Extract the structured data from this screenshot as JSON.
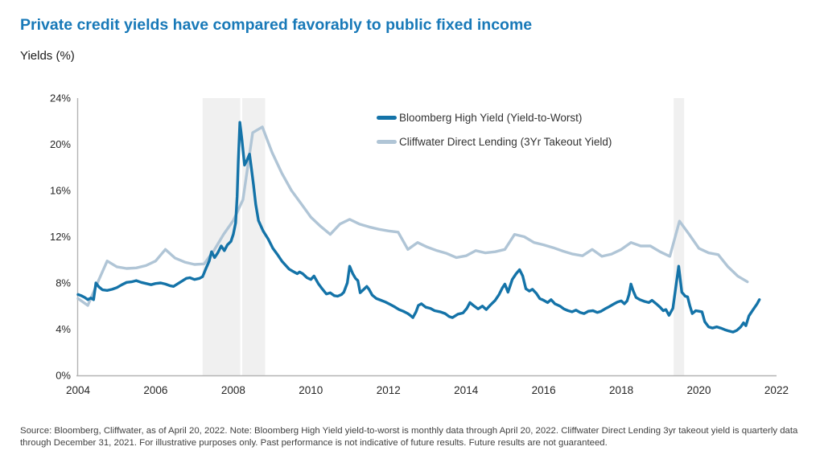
{
  "title": "Private credit yields have compared favorably to public fixed income",
  "subtitle": "Yields (%)",
  "legend": [
    {
      "label": "Bloomberg High Yield (Yield-to-Worst)",
      "color": "#1473A8"
    },
    {
      "label": "Cliffwater Direct Lending (3Yr Takeout Yield)",
      "color": "#B0C5D6"
    }
  ],
  "footnote": "Source: Bloomberg, Cliffwater, as of April 20, 2022. Note: Bloomberg High Yield yield-to-worst is monthly data through April 20, 2022. Cliffwater Direct Lending 3yr takeout yield is quarterly data through December 31, 2021. For illustrative purposes only. Past performance is not indicative of future results. Future results are not guaranteed.",
  "colors": {
    "title": "#1879B8",
    "axis_line": "#B3B3B3",
    "tick_text": "#262626",
    "recession_band": "#F0F0F0",
    "background": "#FFFFFF"
  },
  "chart_data": {
    "type": "line",
    "title": "Private credit yields have compared favorably to public fixed income",
    "ylabel": "Yields (%)",
    "xlabel": "",
    "grid": false,
    "legend_position": "inside-top-center",
    "ylim": [
      0,
      24
    ],
    "xlim": [
      2004,
      2022.4
    ],
    "y_tick_values": [
      0,
      4,
      8,
      12,
      16,
      20,
      24
    ],
    "y_tick_labels": [
      "0%",
      "4%",
      "8%",
      "12%",
      "16%",
      "20%",
      "24%"
    ],
    "x_tick_values": [
      2004,
      2006,
      2008,
      2010,
      2012,
      2014,
      2016,
      2018,
      2020,
      2022
    ],
    "recession_bands": [
      [
        2007.21,
        2008.18
      ],
      [
        2008.23,
        2008.82
      ],
      [
        2019.35,
        2019.62
      ]
    ],
    "series": [
      {
        "name": "Cliffwater Direct Lending (3Yr Takeout Yield)",
        "color": "#B0C5D6",
        "stroke_width": 3.4,
        "frequency": "quarterly",
        "points": [
          [
            2004.0,
            6.65
          ],
          [
            2004.25,
            6.05
          ],
          [
            2004.5,
            8.0
          ],
          [
            2004.75,
            9.9
          ],
          [
            2005.0,
            9.4
          ],
          [
            2005.25,
            9.25
          ],
          [
            2005.5,
            9.3
          ],
          [
            2005.75,
            9.5
          ],
          [
            2006.0,
            9.9
          ],
          [
            2006.25,
            10.9
          ],
          [
            2006.5,
            10.15
          ],
          [
            2006.75,
            9.8
          ],
          [
            2007.0,
            9.6
          ],
          [
            2007.25,
            9.65
          ],
          [
            2007.5,
            10.8
          ],
          [
            2007.75,
            12.2
          ],
          [
            2008.0,
            13.4
          ],
          [
            2008.25,
            15.2
          ],
          [
            2008.5,
            21.0
          ],
          [
            2008.75,
            21.5
          ],
          [
            2009.0,
            19.3
          ],
          [
            2009.25,
            17.5
          ],
          [
            2009.5,
            16.0
          ],
          [
            2009.75,
            14.85
          ],
          [
            2010.0,
            13.7
          ],
          [
            2010.25,
            12.9
          ],
          [
            2010.5,
            12.2
          ],
          [
            2010.75,
            13.1
          ],
          [
            2011.0,
            13.5
          ],
          [
            2011.25,
            13.1
          ],
          [
            2011.5,
            12.85
          ],
          [
            2011.75,
            12.65
          ],
          [
            2012.0,
            12.5
          ],
          [
            2012.25,
            12.4
          ],
          [
            2012.5,
            10.9
          ],
          [
            2012.75,
            11.5
          ],
          [
            2013.0,
            11.1
          ],
          [
            2013.25,
            10.8
          ],
          [
            2013.5,
            10.55
          ],
          [
            2013.75,
            10.2
          ],
          [
            2014.0,
            10.35
          ],
          [
            2014.25,
            10.8
          ],
          [
            2014.5,
            10.6
          ],
          [
            2014.75,
            10.7
          ],
          [
            2015.0,
            10.9
          ],
          [
            2015.25,
            12.2
          ],
          [
            2015.5,
            12.0
          ],
          [
            2015.75,
            11.5
          ],
          [
            2016.0,
            11.3
          ],
          [
            2016.25,
            11.05
          ],
          [
            2016.5,
            10.75
          ],
          [
            2016.75,
            10.5
          ],
          [
            2017.0,
            10.35
          ],
          [
            2017.25,
            10.9
          ],
          [
            2017.5,
            10.3
          ],
          [
            2017.75,
            10.5
          ],
          [
            2018.0,
            10.9
          ],
          [
            2018.25,
            11.5
          ],
          [
            2018.5,
            11.2
          ],
          [
            2018.75,
            11.2
          ],
          [
            2019.0,
            10.7
          ],
          [
            2019.25,
            10.3
          ],
          [
            2019.5,
            13.35
          ],
          [
            2019.75,
            12.2
          ],
          [
            2020.0,
            11.0
          ],
          [
            2020.25,
            10.6
          ],
          [
            2020.5,
            10.45
          ],
          [
            2020.75,
            9.4
          ],
          [
            2021.0,
            8.6
          ],
          [
            2021.25,
            8.1
          ]
        ]
      },
      {
        "name": "Bloomberg High Yield (Yield-to-Worst)",
        "color": "#1473A8",
        "stroke_width": 3.4,
        "frequency": "monthly",
        "points": [
          [
            2004.0,
            7.0
          ],
          [
            2004.08,
            6.9
          ],
          [
            2004.17,
            6.75
          ],
          [
            2004.25,
            6.55
          ],
          [
            2004.33,
            6.7
          ],
          [
            2004.4,
            6.55
          ],
          [
            2004.46,
            8.0
          ],
          [
            2004.54,
            7.65
          ],
          [
            2004.63,
            7.4
          ],
          [
            2004.75,
            7.35
          ],
          [
            2004.88,
            7.45
          ],
          [
            2005.0,
            7.6
          ],
          [
            2005.13,
            7.85
          ],
          [
            2005.25,
            8.05
          ],
          [
            2005.38,
            8.1
          ],
          [
            2005.5,
            8.2
          ],
          [
            2005.63,
            8.05
          ],
          [
            2005.75,
            7.95
          ],
          [
            2005.88,
            7.85
          ],
          [
            2006.0,
            7.95
          ],
          [
            2006.13,
            8.0
          ],
          [
            2006.25,
            7.9
          ],
          [
            2006.38,
            7.75
          ],
          [
            2006.46,
            7.7
          ],
          [
            2006.58,
            7.95
          ],
          [
            2006.7,
            8.2
          ],
          [
            2006.79,
            8.4
          ],
          [
            2006.88,
            8.45
          ],
          [
            2007.0,
            8.3
          ],
          [
            2007.13,
            8.4
          ],
          [
            2007.21,
            8.55
          ],
          [
            2007.29,
            9.2
          ],
          [
            2007.38,
            9.9
          ],
          [
            2007.44,
            10.7
          ],
          [
            2007.52,
            10.2
          ],
          [
            2007.6,
            10.6
          ],
          [
            2007.69,
            11.2
          ],
          [
            2007.77,
            10.8
          ],
          [
            2007.85,
            11.3
          ],
          [
            2007.94,
            11.6
          ],
          [
            2008.0,
            12.2
          ],
          [
            2008.06,
            13.2
          ],
          [
            2008.1,
            15.5
          ],
          [
            2008.13,
            18.5
          ],
          [
            2008.17,
            21.9
          ],
          [
            2008.22,
            20.5
          ],
          [
            2008.29,
            18.2
          ],
          [
            2008.35,
            18.6
          ],
          [
            2008.42,
            19.15
          ],
          [
            2008.46,
            18.1
          ],
          [
            2008.52,
            16.5
          ],
          [
            2008.58,
            14.8
          ],
          [
            2008.65,
            13.4
          ],
          [
            2008.77,
            12.5
          ],
          [
            2008.9,
            11.8
          ],
          [
            2009.02,
            11.0
          ],
          [
            2009.13,
            10.5
          ],
          [
            2009.25,
            9.9
          ],
          [
            2009.33,
            9.6
          ],
          [
            2009.44,
            9.2
          ],
          [
            2009.54,
            9.0
          ],
          [
            2009.65,
            8.8
          ],
          [
            2009.71,
            8.95
          ],
          [
            2009.79,
            8.8
          ],
          [
            2009.9,
            8.45
          ],
          [
            2010.0,
            8.3
          ],
          [
            2010.08,
            8.6
          ],
          [
            2010.19,
            7.95
          ],
          [
            2010.29,
            7.5
          ],
          [
            2010.4,
            7.05
          ],
          [
            2010.5,
            7.15
          ],
          [
            2010.6,
            6.9
          ],
          [
            2010.69,
            6.85
          ],
          [
            2010.79,
            7.0
          ],
          [
            2010.85,
            7.2
          ],
          [
            2010.94,
            8.0
          ],
          [
            2011.0,
            9.45
          ],
          [
            2011.08,
            8.8
          ],
          [
            2011.15,
            8.4
          ],
          [
            2011.21,
            8.2
          ],
          [
            2011.27,
            7.15
          ],
          [
            2011.35,
            7.4
          ],
          [
            2011.44,
            7.7
          ],
          [
            2011.5,
            7.45
          ],
          [
            2011.58,
            6.95
          ],
          [
            2011.69,
            6.65
          ],
          [
            2011.81,
            6.5
          ],
          [
            2011.92,
            6.35
          ],
          [
            2012.04,
            6.15
          ],
          [
            2012.15,
            5.95
          ],
          [
            2012.27,
            5.7
          ],
          [
            2012.38,
            5.55
          ],
          [
            2012.5,
            5.35
          ],
          [
            2012.58,
            5.15
          ],
          [
            2012.63,
            5.0
          ],
          [
            2012.71,
            5.5
          ],
          [
            2012.77,
            6.05
          ],
          [
            2012.85,
            6.2
          ],
          [
            2012.96,
            5.9
          ],
          [
            2013.08,
            5.8
          ],
          [
            2013.19,
            5.6
          ],
          [
            2013.33,
            5.5
          ],
          [
            2013.46,
            5.35
          ],
          [
            2013.56,
            5.1
          ],
          [
            2013.65,
            5.0
          ],
          [
            2013.79,
            5.3
          ],
          [
            2013.92,
            5.4
          ],
          [
            2014.02,
            5.8
          ],
          [
            2014.1,
            6.3
          ],
          [
            2014.21,
            6.0
          ],
          [
            2014.31,
            5.75
          ],
          [
            2014.42,
            6.0
          ],
          [
            2014.52,
            5.7
          ],
          [
            2014.63,
            6.1
          ],
          [
            2014.75,
            6.5
          ],
          [
            2014.85,
            7.0
          ],
          [
            2014.94,
            7.6
          ],
          [
            2015.0,
            7.9
          ],
          [
            2015.08,
            7.2
          ],
          [
            2015.19,
            8.3
          ],
          [
            2015.29,
            8.8
          ],
          [
            2015.38,
            9.15
          ],
          [
            2015.46,
            8.6
          ],
          [
            2015.54,
            7.5
          ],
          [
            2015.63,
            7.3
          ],
          [
            2015.71,
            7.45
          ],
          [
            2015.81,
            7.1
          ],
          [
            2015.9,
            6.65
          ],
          [
            2016.0,
            6.5
          ],
          [
            2016.1,
            6.3
          ],
          [
            2016.19,
            6.55
          ],
          [
            2016.29,
            6.2
          ],
          [
            2016.42,
            6.0
          ],
          [
            2016.52,
            5.75
          ],
          [
            2016.63,
            5.6
          ],
          [
            2016.73,
            5.5
          ],
          [
            2016.83,
            5.65
          ],
          [
            2016.94,
            5.45
          ],
          [
            2017.04,
            5.35
          ],
          [
            2017.15,
            5.55
          ],
          [
            2017.27,
            5.6
          ],
          [
            2017.38,
            5.45
          ],
          [
            2017.48,
            5.55
          ],
          [
            2017.58,
            5.75
          ],
          [
            2017.69,
            5.95
          ],
          [
            2017.79,
            6.15
          ],
          [
            2017.9,
            6.35
          ],
          [
            2018.0,
            6.45
          ],
          [
            2018.08,
            6.2
          ],
          [
            2018.15,
            6.45
          ],
          [
            2018.2,
            7.0
          ],
          [
            2018.25,
            7.9
          ],
          [
            2018.31,
            7.3
          ],
          [
            2018.38,
            6.75
          ],
          [
            2018.48,
            6.55
          ],
          [
            2018.6,
            6.4
          ],
          [
            2018.71,
            6.3
          ],
          [
            2018.79,
            6.5
          ],
          [
            2018.9,
            6.2
          ],
          [
            2019.0,
            5.9
          ],
          [
            2019.08,
            5.6
          ],
          [
            2019.15,
            5.7
          ],
          [
            2019.23,
            5.2
          ],
          [
            2019.33,
            5.8
          ],
          [
            2019.48,
            9.45
          ],
          [
            2019.56,
            7.2
          ],
          [
            2019.65,
            6.85
          ],
          [
            2019.71,
            6.8
          ],
          [
            2019.77,
            6.0
          ],
          [
            2019.83,
            5.35
          ],
          [
            2019.92,
            5.6
          ],
          [
            2020.0,
            5.55
          ],
          [
            2020.08,
            5.5
          ],
          [
            2020.15,
            4.65
          ],
          [
            2020.25,
            4.2
          ],
          [
            2020.35,
            4.1
          ],
          [
            2020.46,
            4.2
          ],
          [
            2020.56,
            4.1
          ],
          [
            2020.67,
            3.95
          ],
          [
            2020.77,
            3.85
          ],
          [
            2020.88,
            3.75
          ],
          [
            2020.98,
            3.9
          ],
          [
            2021.08,
            4.2
          ],
          [
            2021.15,
            4.55
          ],
          [
            2021.21,
            4.3
          ],
          [
            2021.29,
            5.15
          ],
          [
            2021.4,
            5.7
          ],
          [
            2021.5,
            6.2
          ],
          [
            2021.56,
            6.55
          ]
        ]
      }
    ]
  }
}
